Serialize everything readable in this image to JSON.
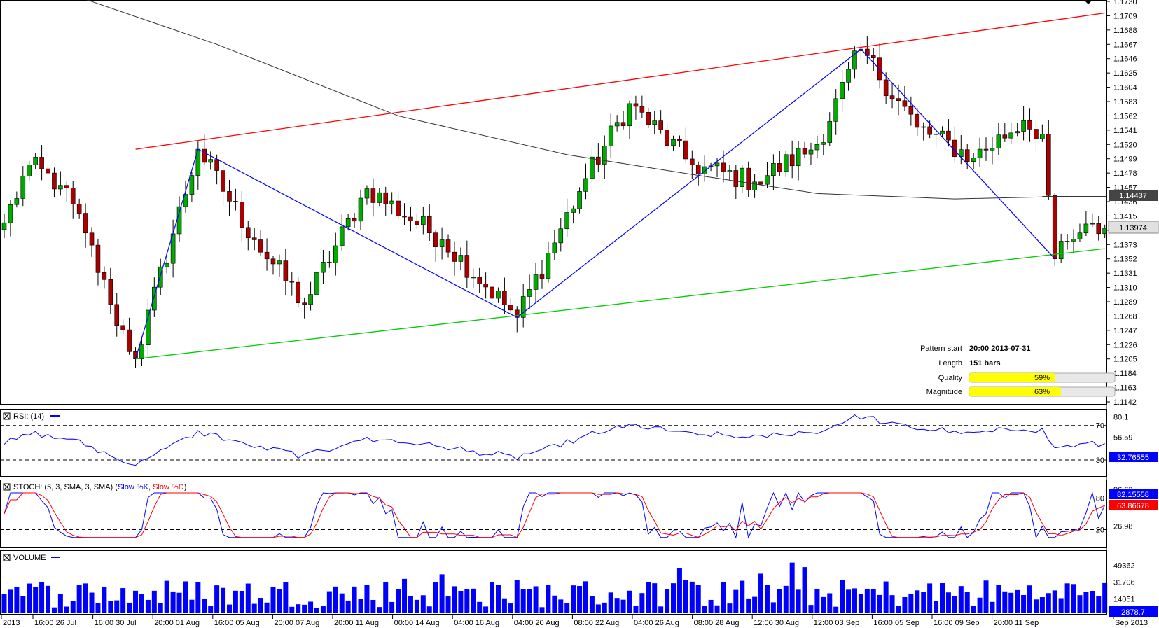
{
  "chart_data": [
    {
      "type": "candlestick",
      "panel": "price",
      "y_ticks": [
        "1.1730",
        "1.1709",
        "1.1688",
        "1.1667",
        "1.1646",
        "1.1625",
        "1.1604",
        "1.1583",
        "1.1562",
        "1.1541",
        "1.1520",
        "1.1499",
        "1.1478",
        "1.1457",
        "1.1436",
        "1.1415",
        "1.1394",
        "1.1373",
        "1.1352",
        "1.1331",
        "1.1310",
        "1.1289",
        "1.1268",
        "1.1247",
        "1.1226",
        "1.1205",
        "1.1184",
        "1.1163",
        "1.1142"
      ],
      "ylim": [
        1.1142,
        1.173
      ],
      "current_price": "1.13974",
      "ma_value": "1.14437",
      "bars": 177,
      "pattern_zigzag": [
        [
          21,
          1.1205
        ],
        [
          31,
          1.1513
        ],
        [
          82,
          1.1266
        ],
        [
          137,
          1.166
        ],
        [
          168,
          1.1352
        ]
      ],
      "resistance_line": {
        "from": [
          21,
          1.1513
        ],
        "to": [
          176,
          1.1713
        ],
        "color": "#ff0000"
      },
      "support_line": {
        "from": [
          21,
          1.1205
        ],
        "to": [
          176,
          1.1367
        ],
        "color": "#00cc00"
      },
      "moving_average": [
        [
          13,
          1.1733
        ],
        [
          34,
          1.1667
        ],
        [
          63,
          1.1562
        ],
        [
          90,
          1.1505
        ],
        [
          110,
          1.1476
        ],
        [
          130,
          1.1448
        ],
        [
          152,
          1.144
        ],
        [
          166,
          1.1443
        ],
        [
          176,
          1.1443
        ]
      ],
      "candle_colors": {
        "up": "#00aa00",
        "down": "#aa0000"
      },
      "ma_color": "#333333",
      "zigzag_color": "#0000ff",
      "info": {
        "pattern_start_label": "Pattern start",
        "pattern_start_value": "20:00 2013-07-31",
        "length_label": "Length",
        "length_value": "151 bars",
        "quality_label": "Quality",
        "quality_value": 59,
        "quality_text": "59%",
        "magnitude_label": "Magnitude",
        "magnitude_value": 63,
        "magnitude_text": "63%",
        "bar_color": "#ffff00"
      }
    },
    {
      "type": "line",
      "panel": "rsi",
      "title": "RSI: (14)",
      "y_ticks": [
        "80.1",
        "70",
        "56.59",
        "30"
      ],
      "ylim": [
        13,
        86
      ],
      "levels": [
        70,
        30
      ],
      "current_value": "32.76555",
      "color": "#0000ff"
    },
    {
      "type": "line",
      "panel": "stoch",
      "title_prefix": "STOCH: (5, 3, SMA, 3, SMA) (",
      "k_name": "Slow %K",
      "d_name": "Slow %D",
      "title_suffix": ")",
      "y_ticks": [
        "96.63",
        "80",
        "26.98",
        "20"
      ],
      "ylim": [
        -10,
        110
      ],
      "levels": [
        80,
        20
      ],
      "k_value": "82.15558",
      "d_value": "63.86678",
      "k_color": "#0000ff",
      "d_color": "#ff0000"
    },
    {
      "type": "bar",
      "panel": "volume",
      "title": "VOLUME",
      "y_ticks": [
        "49362",
        "31706",
        "14051"
      ],
      "ylim": [
        0,
        62000
      ],
      "current_value": "2878.7",
      "color": "#0000ff"
    }
  ],
  "x_axis": {
    "labels": [
      "2013",
      "16:00 26 Jul",
      "16:00 30 Jul",
      "20:00 01 Aug",
      "16:00 05 Aug",
      "20:00 07 Aug",
      "20:00 11 Aug",
      "00:00 14 Aug",
      "04:00 16 Aug",
      "04:00 20 Aug",
      "08:00 22 Aug",
      "04:00 26 Aug",
      "08:00 28 Aug",
      "12:00 30 Aug",
      "12:00 03 Sep",
      "16:00 05 Sep",
      "16:00 09 Sep",
      "20:00 11 Sep",
      "Sep 2013"
    ]
  }
}
